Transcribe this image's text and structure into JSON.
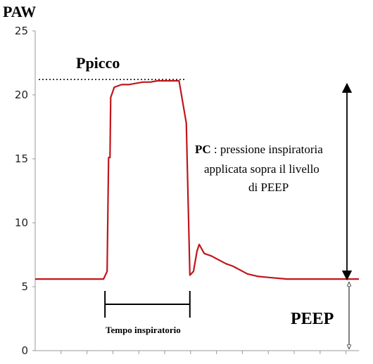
{
  "chart_data": {
    "type": "line",
    "ylabel": "PAW",
    "ylim": [
      0,
      25
    ],
    "yticks": [
      0,
      5,
      10,
      15,
      20,
      25
    ],
    "series_color": "#c0151b",
    "x": [
      0,
      0.5,
      0.95,
      1.0,
      1.02,
      1.04,
      1.05,
      1.1,
      1.2,
      1.3,
      1.4,
      1.5,
      1.6,
      1.7,
      1.8,
      1.9,
      2.0,
      2.1,
      2.15,
      2.2,
      2.25,
      2.28,
      2.35,
      2.45,
      2.55,
      2.65,
      2.75,
      2.85,
      2.95,
      3.1,
      3.3,
      3.5,
      3.7,
      4.5
    ],
    "values": [
      5.6,
      5.6,
      5.6,
      6.2,
      15.1,
      15.1,
      19.8,
      20.6,
      20.8,
      20.8,
      20.9,
      21.0,
      21.0,
      21.1,
      21.1,
      21.1,
      21.1,
      17.8,
      5.9,
      6.2,
      7.8,
      8.3,
      7.6,
      7.4,
      7.1,
      6.8,
      6.6,
      6.3,
      6.0,
      5.8,
      5.7,
      5.6,
      5.6,
      5.6
    ],
    "annotations": {
      "peak_label": "Ppicco",
      "peak_value": 21.2,
      "pc_bold": "PC",
      "pc_text_line1": " :  pressione inspiratoria",
      "pc_text_line2": "applicata sopra il livello",
      "pc_text_line3": "di PEEP",
      "peep_label": "PEEP",
      "insp_label": "Tempo inspiratorio",
      "insp_start": 0.97,
      "insp_end": 2.15
    }
  }
}
